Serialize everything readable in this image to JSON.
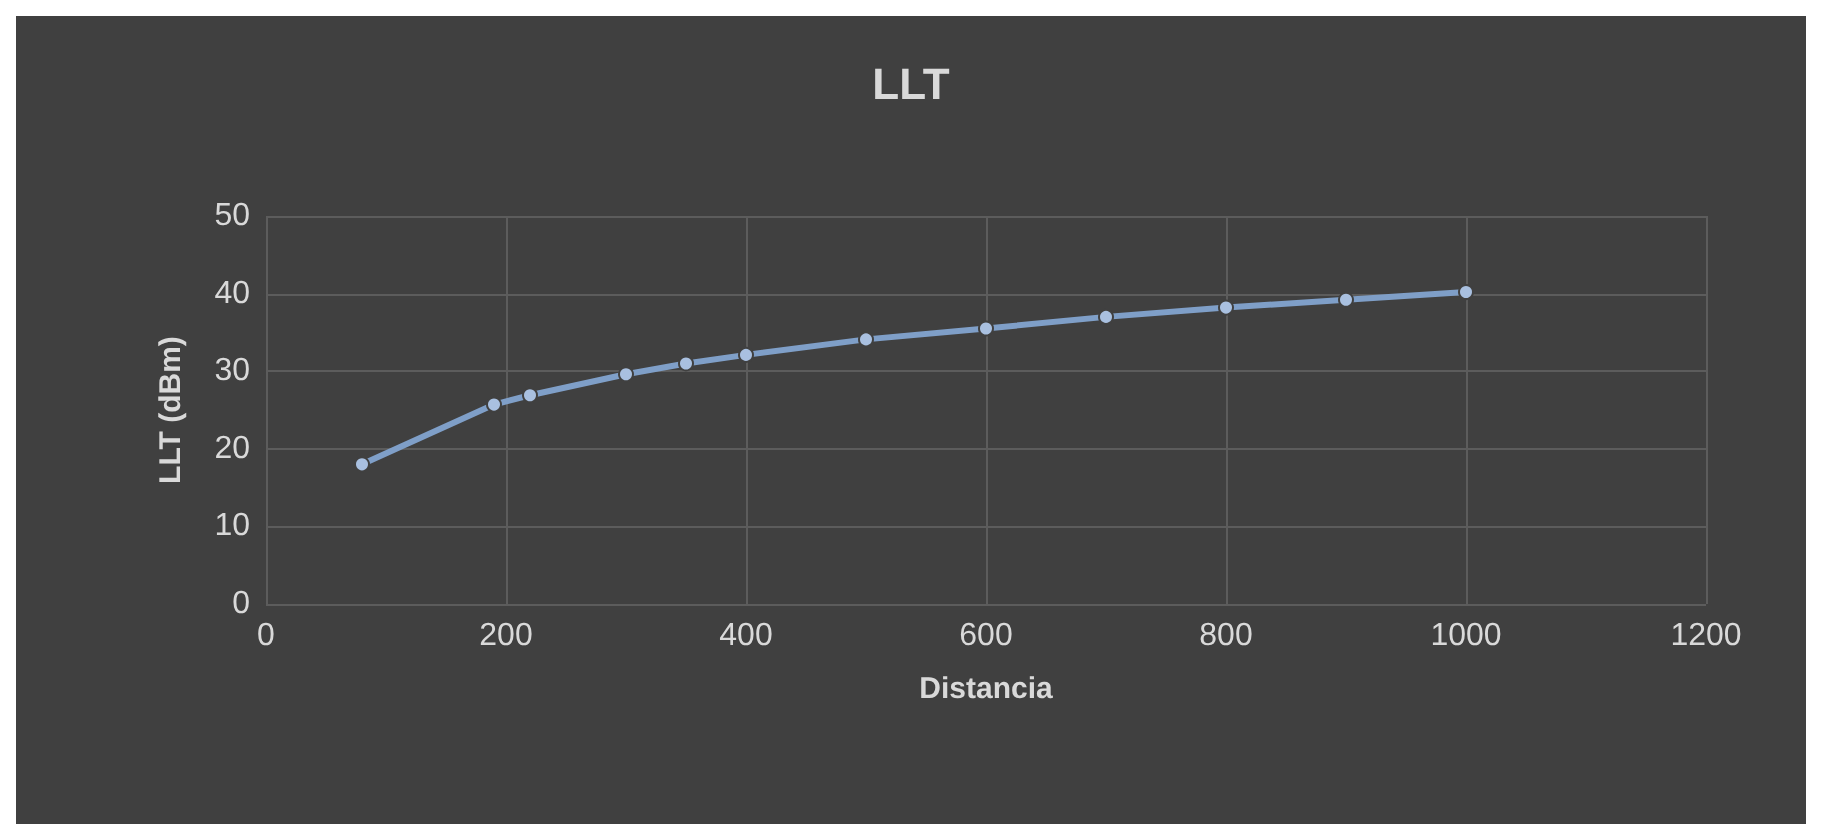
{
  "chart_data": {
    "type": "line",
    "title": "LLT",
    "xlabel": "Distancia",
    "ylabel": "LLT (dBm)",
    "x": [
      80,
      190,
      220,
      300,
      350,
      400,
      500,
      600,
      700,
      800,
      900,
      1000
    ],
    "series": [
      {
        "color": "#7f9fc8",
        "values": [
          18.0,
          25.7,
          26.9,
          29.6,
          31.0,
          32.1,
          34.1,
          35.5,
          37.0,
          38.2,
          39.2,
          40.2
        ]
      }
    ],
    "xlim": [
      0,
      1200
    ],
    "xticks": [
      0,
      200,
      400,
      600,
      800,
      1000,
      1200
    ],
    "ylim": [
      0,
      50
    ],
    "yticks": [
      0,
      10,
      20,
      30,
      40,
      50
    ],
    "grid": true,
    "marker": "circle",
    "line_style": "solid"
  }
}
